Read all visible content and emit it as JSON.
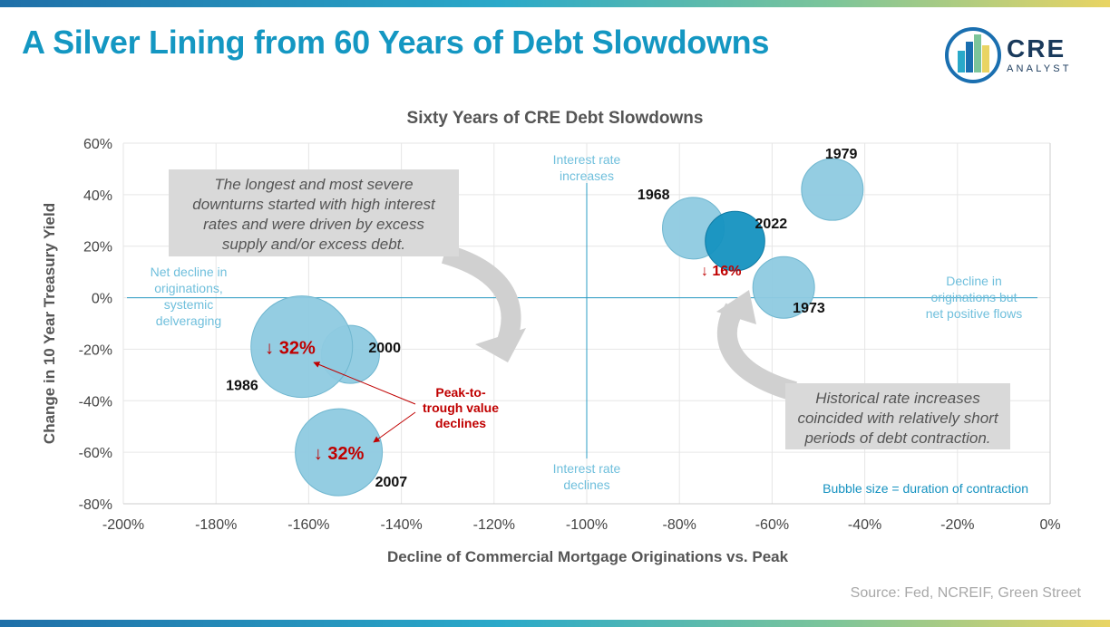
{
  "page": {
    "title": "A Silver Lining from 60 Years of Debt Slowdowns",
    "logo": {
      "main": "CRE",
      "sub": "ANALYST",
      "icon": "cre-analyst-logo-icon"
    },
    "source": "Source: Fed, NCREIF, Green Street"
  },
  "chart_data": {
    "type": "scatter",
    "title": "Sixty Years of CRE Debt Slowdowns",
    "xlabel": "Decline of Commercial Mortgage Originations vs. Peak",
    "ylabel": "Change in 10 Year Treasury Yield",
    "xlim": [
      -200,
      0
    ],
    "ylim": [
      -80,
      60
    ],
    "x_ticks": [
      "-200%",
      "-180%",
      "-160%",
      "-140%",
      "-120%",
      "-100%",
      "-80%",
      "-60%",
      "-40%",
      "-20%",
      "0%"
    ],
    "y_ticks": [
      "60%",
      "40%",
      "20%",
      "0%",
      "-20%",
      "-40%",
      "-60%",
      "-80%"
    ],
    "grid": true,
    "bubble_size_note": "Bubble size = duration of contraction",
    "points": [
      {
        "year": "1968",
        "x": -77,
        "y": 27,
        "size": 0.45,
        "highlight": false
      },
      {
        "year": "1973",
        "x": -57.5,
        "y": 4,
        "size": 0.45,
        "highlight": false
      },
      {
        "year": "1979",
        "x": -47,
        "y": 42,
        "size": 0.45,
        "highlight": false
      },
      {
        "year": "2022",
        "x": -68,
        "y": 22,
        "size": 0.42,
        "highlight": true
      },
      {
        "year": "2000",
        "x": -151,
        "y": -22,
        "size": 0.4,
        "highlight": false
      },
      {
        "year": "1986",
        "x": -161.5,
        "y": -19,
        "size": 1.0,
        "highlight": false
      },
      {
        "year": "2007",
        "x": -153.5,
        "y": -60,
        "size": 0.8,
        "highlight": false
      }
    ],
    "value_declines": [
      {
        "text": "↓ 32%",
        "year": "1986"
      },
      {
        "text": "↓ 32%",
        "year": "2007"
      },
      {
        "text": "↓ 16%",
        "year": "2022"
      }
    ],
    "quadrant_labels": {
      "top": "Interest rate increases",
      "bottom": "Interest rate declines",
      "left": "Net decline in originations, systemic delveraging",
      "right": "Decline in originations but net positive flows"
    },
    "annotations": {
      "callout_top": "The longest and most severe downturns started with high interest rates and were driven by excess supply and/or excess debt.",
      "callout_bottom": "Historical rate increases coincided with relatively short periods of debt contraction.",
      "peak_label": "Peak-to- trough value declines"
    },
    "colors": {
      "bubble": "#8ecae0",
      "bubble_highlight": "#1592c0",
      "axis_line": "#2b9cc4",
      "quadrant_text": "#6fbfdc",
      "decline_red": "#c00000",
      "callout_bg": "#d9d9d9"
    }
  }
}
